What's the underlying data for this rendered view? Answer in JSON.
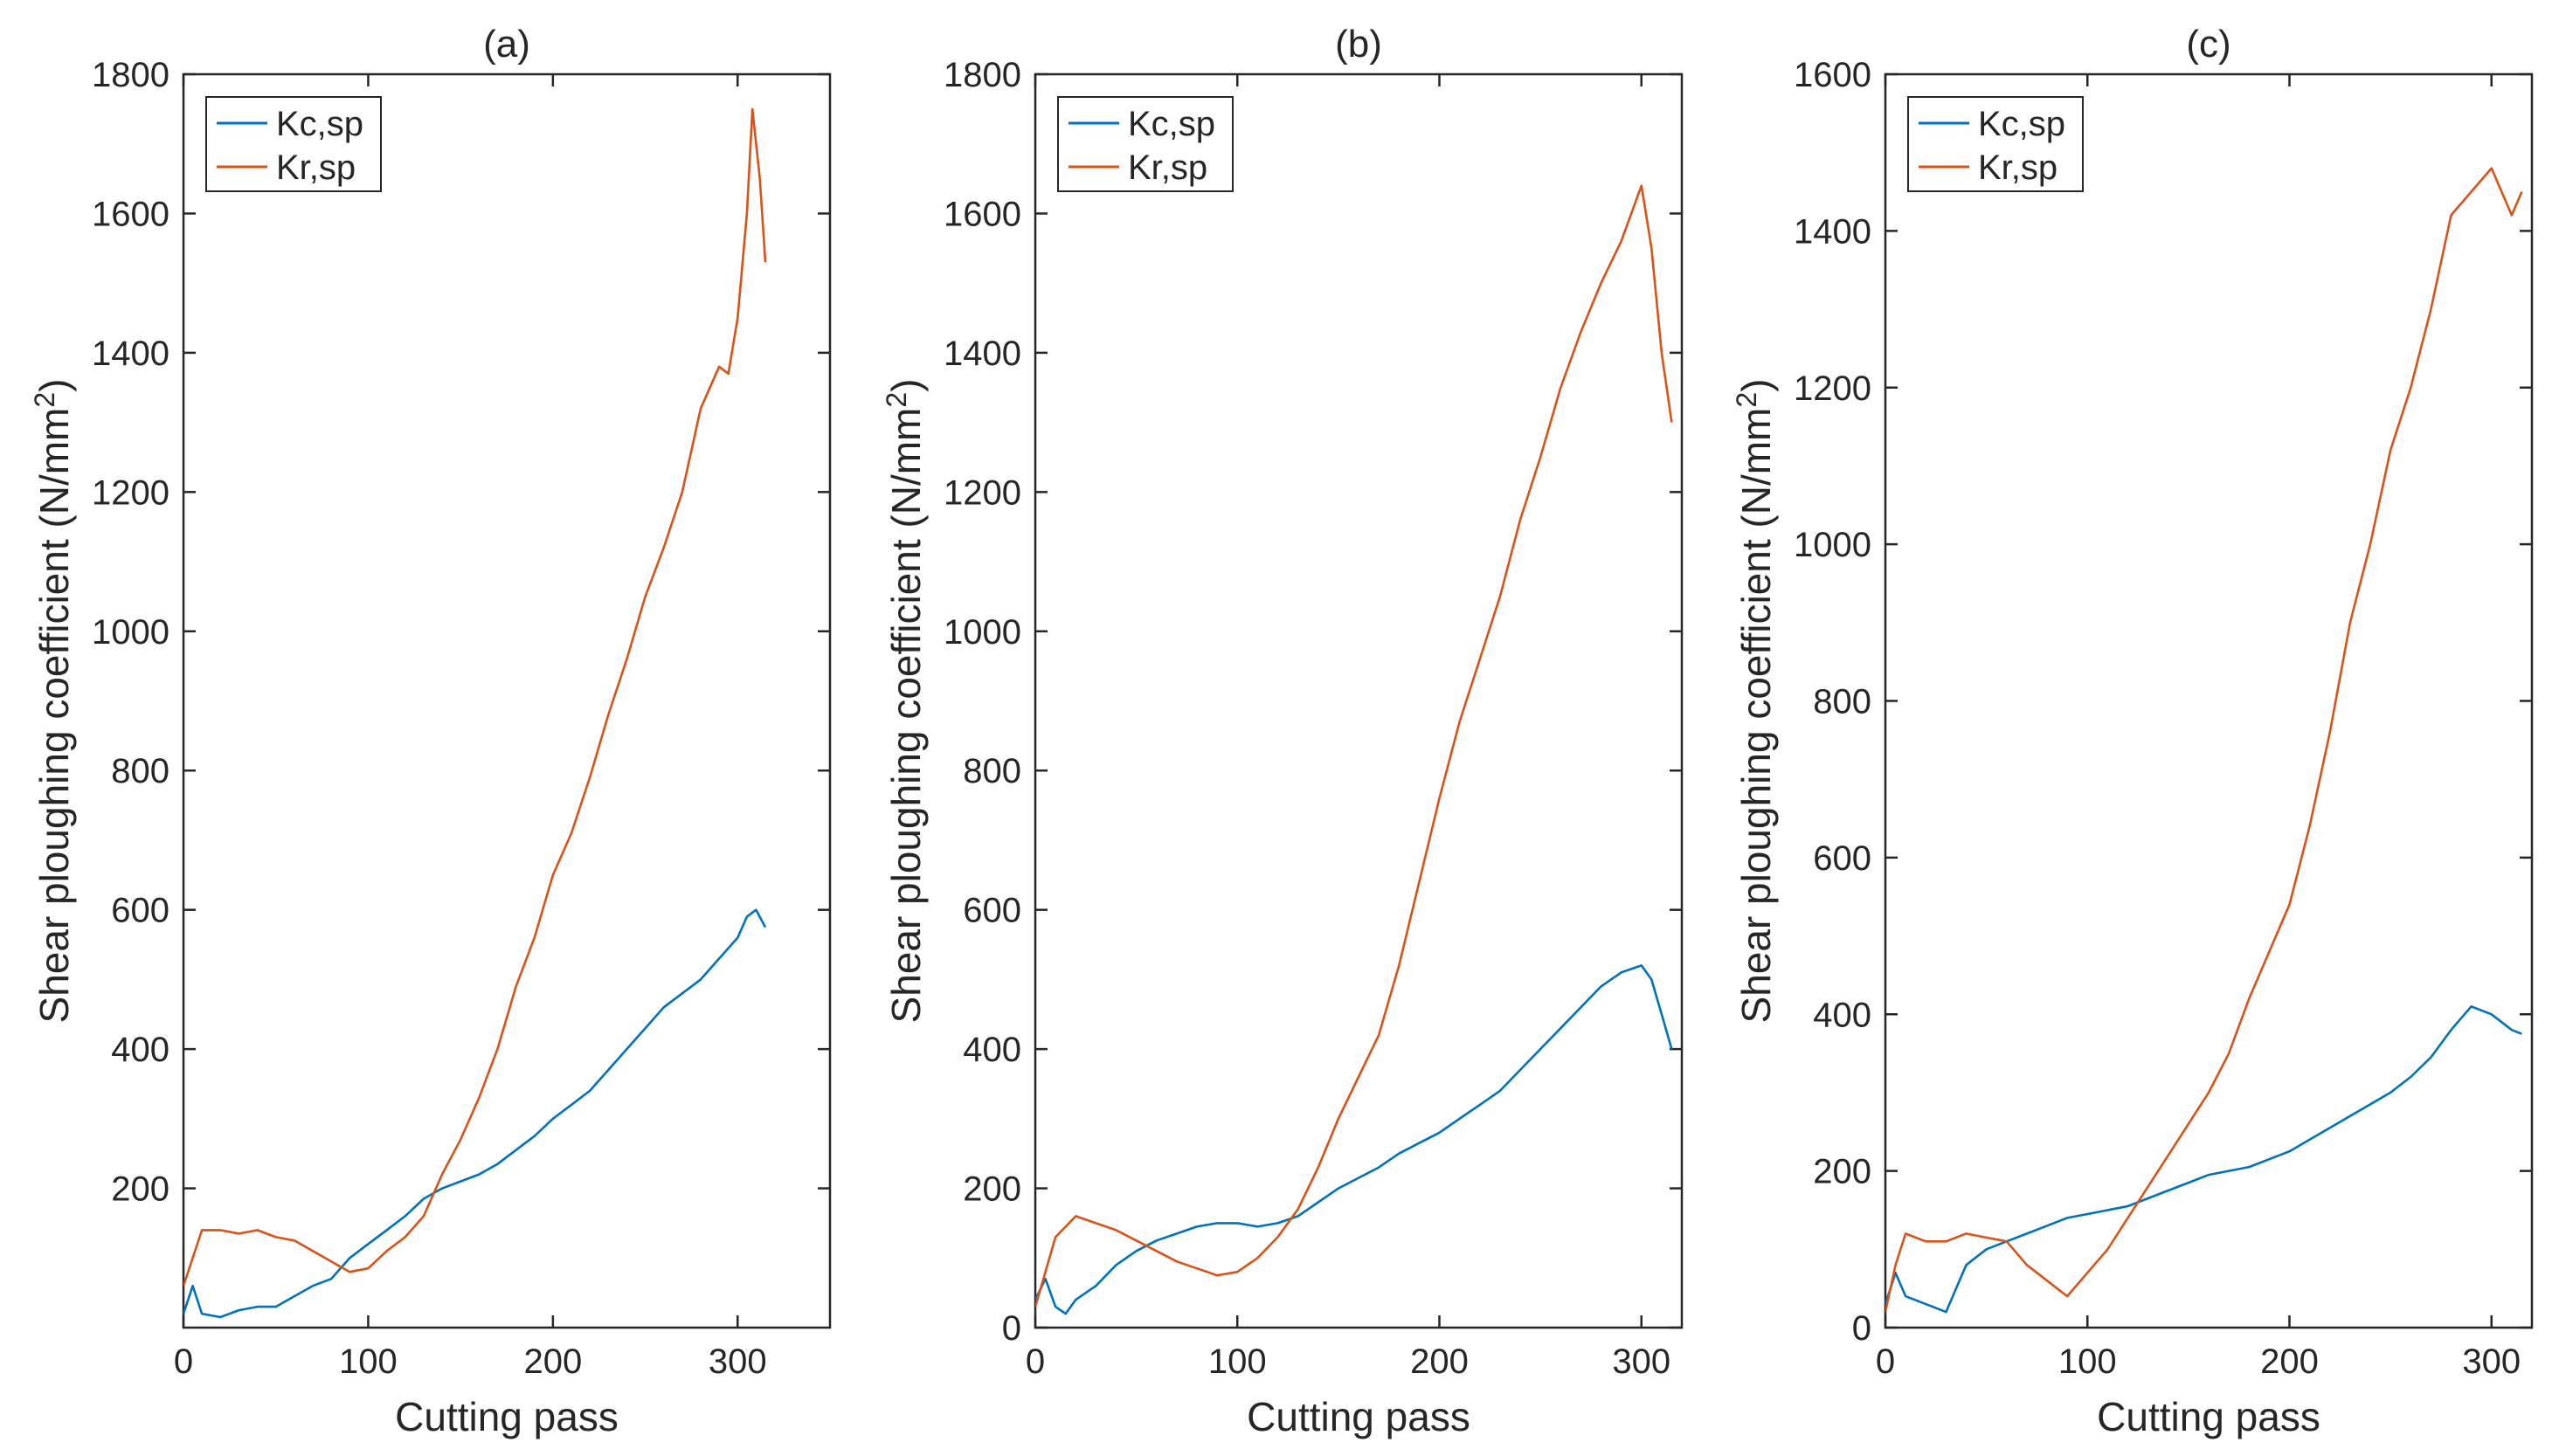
{
  "figure": {
    "panel_count": 3
  },
  "chart_data": [
    {
      "type": "line",
      "title": "(a)",
      "xlabel": "Cutting pass",
      "ylabel": "Shear ploughing coefficient (N/mm",
      "ylabel_sup": "2",
      "ylabel_close": ")",
      "xlim": [
        0,
        350
      ],
      "ylim": [
        0,
        1800
      ],
      "xticks": [
        0,
        100,
        200,
        300
      ],
      "yticks": [
        200,
        400,
        600,
        800,
        1000,
        1200,
        1400,
        1600,
        1800
      ],
      "xtick_labels": [
        "0",
        "100",
        "200",
        "300"
      ],
      "ytick_labels": [
        "200",
        "400",
        "600",
        "800",
        "1000",
        "1200",
        "1400",
        "1600",
        "1800"
      ],
      "legend_position": "top-left",
      "series": [
        {
          "name": "Kc,sp",
          "color": "#0072BD",
          "x": [
            0,
            5,
            10,
            20,
            30,
            40,
            50,
            60,
            70,
            80,
            90,
            100,
            110,
            120,
            130,
            140,
            150,
            160,
            170,
            180,
            190,
            200,
            210,
            220,
            230,
            240,
            250,
            260,
            270,
            280,
            290,
            300,
            305,
            310,
            315
          ],
          "y": [
            20,
            60,
            20,
            15,
            25,
            30,
            30,
            45,
            60,
            70,
            100,
            120,
            140,
            160,
            185,
            200,
            210,
            220,
            235,
            255,
            275,
            300,
            320,
            340,
            370,
            400,
            430,
            460,
            480,
            500,
            530,
            560,
            590,
            600,
            575
          ]
        },
        {
          "name": "Kr,sp",
          "color": "#D95319",
          "x": [
            0,
            5,
            10,
            20,
            30,
            40,
            50,
            60,
            70,
            80,
            90,
            100,
            110,
            120,
            130,
            140,
            150,
            160,
            170,
            180,
            190,
            200,
            210,
            220,
            230,
            240,
            250,
            260,
            270,
            280,
            290,
            295,
            300,
            305,
            308,
            312,
            315
          ],
          "y": [
            60,
            100,
            140,
            140,
            135,
            140,
            130,
            125,
            110,
            95,
            80,
            85,
            110,
            130,
            160,
            220,
            270,
            330,
            400,
            490,
            560,
            650,
            710,
            790,
            880,
            960,
            1050,
            1120,
            1200,
            1320,
            1380,
            1370,
            1450,
            1600,
            1750,
            1650,
            1530
          ]
        }
      ]
    },
    {
      "type": "line",
      "title": "(b)",
      "xlabel": "Cutting pass",
      "ylabel": "Shear ploughing coefficient (N/mm",
      "ylabel_sup": "2",
      "ylabel_close": ")",
      "xlim": [
        0,
        320
      ],
      "ylim": [
        0,
        1800
      ],
      "xticks": [
        0,
        100,
        200,
        300
      ],
      "yticks": [
        0,
        200,
        400,
        600,
        800,
        1000,
        1200,
        1400,
        1600,
        1800
      ],
      "xtick_labels": [
        "0",
        "100",
        "200",
        "300"
      ],
      "ytick_labels": [
        "0",
        "200",
        "400",
        "600",
        "800",
        "1000",
        "1200",
        "1400",
        "1600",
        "1800"
      ],
      "legend_position": "top-left",
      "series": [
        {
          "name": "Kc,sp",
          "color": "#0072BD",
          "x": [
            0,
            5,
            10,
            15,
            20,
            30,
            40,
            50,
            60,
            70,
            80,
            90,
            100,
            110,
            120,
            130,
            140,
            150,
            160,
            170,
            180,
            190,
            200,
            210,
            220,
            230,
            240,
            250,
            260,
            270,
            280,
            290,
            300,
            305,
            310,
            315
          ],
          "y": [
            40,
            70,
            30,
            20,
            40,
            60,
            90,
            110,
            125,
            135,
            145,
            150,
            150,
            145,
            150,
            160,
            180,
            200,
            215,
            230,
            250,
            265,
            280,
            300,
            320,
            340,
            370,
            400,
            430,
            460,
            490,
            510,
            520,
            500,
            450,
            400
          ]
        },
        {
          "name": "Kr,sp",
          "color": "#D95319",
          "x": [
            0,
            5,
            10,
            20,
            30,
            40,
            50,
            60,
            70,
            80,
            90,
            100,
            110,
            120,
            130,
            140,
            150,
            160,
            170,
            180,
            190,
            200,
            210,
            220,
            230,
            240,
            250,
            260,
            270,
            280,
            290,
            300,
            305,
            310,
            315
          ],
          "y": [
            30,
            80,
            130,
            160,
            150,
            140,
            125,
            110,
            95,
            85,
            75,
            80,
            100,
            130,
            170,
            230,
            300,
            360,
            420,
            520,
            640,
            760,
            870,
            960,
            1050,
            1160,
            1250,
            1350,
            1430,
            1500,
            1560,
            1640,
            1550,
            1400,
            1300
          ]
        }
      ]
    },
    {
      "type": "line",
      "title": "(c)",
      "xlabel": "Cutting pass",
      "ylabel": "Shear ploughing coefficient (N/mm",
      "ylabel_sup": "2",
      "ylabel_close": ")",
      "xlim": [
        0,
        320
      ],
      "ylim": [
        0,
        1600
      ],
      "xticks": [
        0,
        100,
        200,
        300
      ],
      "yticks": [
        0,
        200,
        400,
        600,
        800,
        1000,
        1200,
        1400,
        1600
      ],
      "xtick_labels": [
        "0",
        "100",
        "200",
        "300"
      ],
      "ytick_labels": [
        "0",
        "200",
        "400",
        "600",
        "800",
        "1000",
        "1200",
        "1400",
        "1600"
      ],
      "legend_position": "top-left",
      "series": [
        {
          "name": "Kc,sp",
          "color": "#0072BD",
          "x": [
            0,
            5,
            10,
            20,
            30,
            40,
            50,
            60,
            70,
            80,
            90,
            100,
            110,
            120,
            130,
            140,
            150,
            160,
            170,
            180,
            190,
            200,
            210,
            220,
            230,
            240,
            250,
            260,
            270,
            280,
            290,
            300,
            310,
            315
          ],
          "y": [
            30,
            70,
            40,
            30,
            20,
            80,
            100,
            110,
            120,
            130,
            140,
            145,
            150,
            155,
            165,
            175,
            185,
            195,
            200,
            205,
            215,
            225,
            240,
            255,
            270,
            285,
            300,
            320,
            345,
            380,
            410,
            400,
            380,
            375
          ]
        },
        {
          "name": "Kr,sp",
          "color": "#D95319",
          "x": [
            0,
            5,
            10,
            20,
            30,
            40,
            50,
            60,
            70,
            80,
            90,
            100,
            110,
            120,
            130,
            140,
            150,
            160,
            170,
            180,
            190,
            200,
            210,
            220,
            230,
            240,
            250,
            260,
            270,
            280,
            290,
            300,
            305,
            310,
            315
          ],
          "y": [
            20,
            80,
            120,
            110,
            110,
            120,
            115,
            110,
            80,
            60,
            40,
            70,
            100,
            140,
            180,
            220,
            260,
            300,
            350,
            420,
            480,
            540,
            640,
            760,
            900,
            1000,
            1120,
            1200,
            1300,
            1420,
            1450,
            1480,
            1450,
            1420,
            1450
          ]
        }
      ]
    }
  ]
}
